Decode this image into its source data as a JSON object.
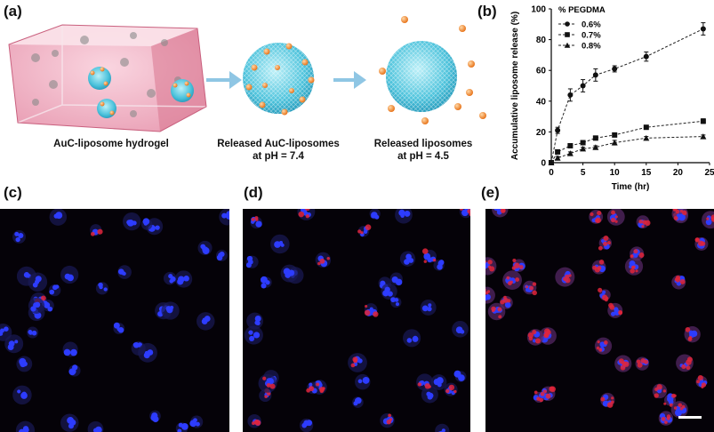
{
  "panels": {
    "a": {
      "label": "(a)",
      "captions": {
        "hydrogel": "AuC-liposome hydrogel",
        "released_auc_line1": "Released AuC-liposomes",
        "released_auc_line2": "at pH = 7.4",
        "released_lipo_line1": "Released liposomes",
        "released_lipo_line2": "at pH = 4.5"
      }
    },
    "b": {
      "label": "(b)"
    },
    "c": {
      "label": "(c)"
    },
    "d": {
      "label": "(d)"
    },
    "e": {
      "label": "(e)"
    }
  },
  "chart_data": {
    "type": "line",
    "title": "",
    "xlabel": "Time (hr)",
    "ylabel": "Accumulative liposome release (%)",
    "xlim": [
      0,
      25
    ],
    "ylim": [
      0,
      100
    ],
    "xticks": [
      0,
      5,
      10,
      15,
      20,
      25
    ],
    "yticks": [
      0,
      20,
      40,
      60,
      80,
      100
    ],
    "legend_title": "% PEGDMA",
    "legend_position": "top-left",
    "grid": false,
    "series": [
      {
        "name": "0.6%",
        "marker": "circle",
        "x": [
          0,
          1,
          3,
          5,
          7,
          10,
          15,
          24
        ],
        "y": [
          0,
          21,
          44,
          50,
          57,
          61,
          69,
          87
        ],
        "err": [
          0,
          2,
          4,
          4,
          4,
          2,
          3,
          4
        ]
      },
      {
        "name": "0.7%",
        "marker": "square",
        "x": [
          0,
          1,
          3,
          5,
          7,
          10,
          15,
          24
        ],
        "y": [
          0,
          7,
          11,
          13,
          16,
          18,
          23,
          27
        ],
        "err": [
          0,
          1,
          1,
          1,
          1,
          1,
          1,
          1.5
        ]
      },
      {
        "name": "0.8%",
        "marker": "triangle",
        "x": [
          0,
          1,
          3,
          5,
          7,
          10,
          15,
          24
        ],
        "y": [
          0,
          3,
          6,
          9,
          10,
          13,
          16,
          17
        ],
        "err": [
          0,
          1,
          1,
          1,
          1,
          1.5,
          1,
          1
        ]
      }
    ]
  }
}
